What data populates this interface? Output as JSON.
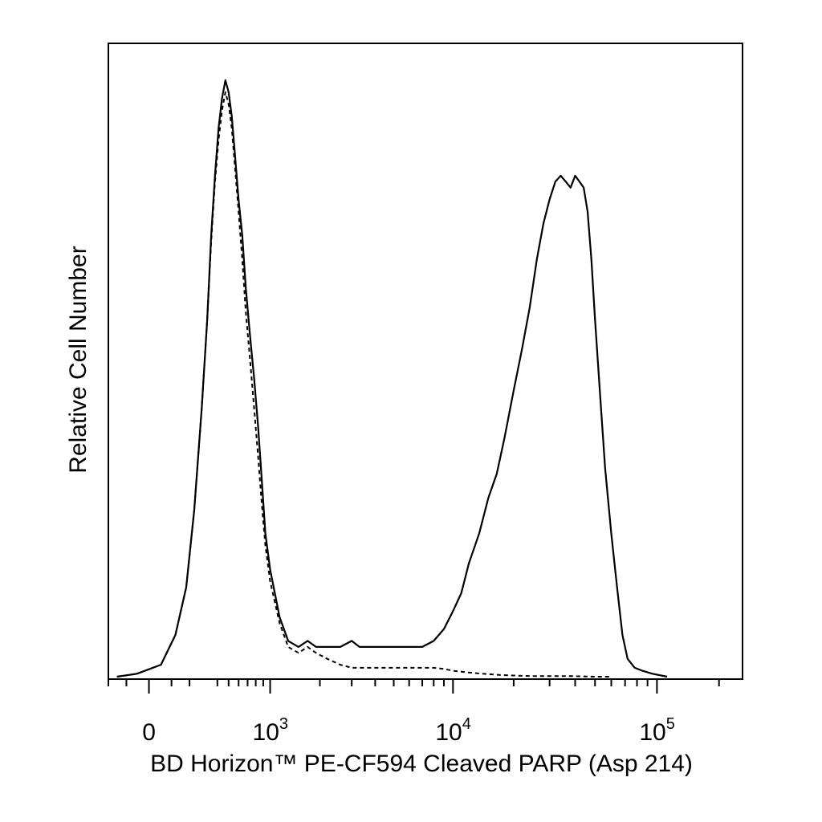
{
  "chart_data": {
    "type": "line",
    "title": "",
    "xlabel": "BD Horizon™ PE-CF594 Cleaved PARP (Asp 214)",
    "ylabel": "Relative Cell Number",
    "x_scale": "biexponential",
    "x_ticks": [
      {
        "value": 0,
        "base": "0",
        "exp": ""
      },
      {
        "value": 1000,
        "base": "10",
        "exp": "3"
      },
      {
        "value": 10000,
        "base": "10",
        "exp": "4"
      },
      {
        "value": 100000,
        "base": "10",
        "exp": "5"
      }
    ],
    "xlim": [
      -200,
      260000
    ],
    "ylim": [
      0,
      100
    ],
    "grid": false,
    "legend": "none",
    "series": [
      {
        "style": "solid",
        "x": [
          -150,
          -50,
          50,
          120,
          180,
          230,
          280,
          320,
          350,
          380,
          410,
          440,
          470,
          500,
          530,
          560,
          600,
          640,
          680,
          730,
          780,
          830,
          880,
          930,
          1000,
          1150,
          1300,
          1500,
          1700,
          1900,
          2200,
          2600,
          3000,
          3300,
          3700,
          4200,
          5000,
          6000,
          7000,
          8000,
          9000,
          10000,
          11000,
          12000,
          13500,
          15000,
          16500,
          18000,
          20000,
          22000,
          24000,
          26000,
          28000,
          30000,
          32000,
          34000,
          36000,
          38000,
          40000,
          42000,
          44000,
          46000,
          48000,
          50000,
          53000,
          56000,
          60000,
          64000,
          68000,
          72000,
          78000,
          85000,
          95000,
          105000,
          112000
        ],
        "y": [
          0,
          0.5,
          2,
          7,
          15,
          28,
          45,
          60,
          74,
          84,
          92,
          97,
          100,
          98,
          94,
          88,
          80,
          74,
          65,
          57,
          50,
          42,
          33,
          24,
          18,
          10,
          6,
          5,
          6,
          5,
          5,
          5,
          6,
          5,
          5,
          5,
          5,
          5,
          5,
          6,
          8,
          11,
          14,
          19,
          24,
          30,
          34,
          40,
          48,
          55,
          62,
          70,
          76,
          80,
          83,
          84,
          83,
          82,
          84,
          83,
          82,
          78,
          70,
          60,
          47,
          35,
          24,
          15,
          7,
          3,
          1.5,
          1,
          0.5,
          0.2,
          0
        ]
      },
      {
        "style": "dashed",
        "x": [
          -150,
          -50,
          50,
          120,
          180,
          230,
          280,
          320,
          350,
          380,
          410,
          440,
          470,
          500,
          530,
          560,
          600,
          640,
          680,
          730,
          780,
          830,
          880,
          930,
          1000,
          1150,
          1300,
          1500,
          1700,
          1900,
          2200,
          2600,
          3000,
          3500,
          4200,
          5000,
          6000,
          7000,
          8000,
          9000,
          10000,
          12000,
          14000,
          17000,
          20000,
          25000,
          30000,
          40000,
          50000,
          60000
        ],
        "y": [
          0,
          0.5,
          2,
          7,
          15,
          28,
          45,
          60,
          73,
          83,
          90,
          95,
          98,
          96,
          92,
          86,
          78,
          70,
          61,
          53,
          45,
          37,
          29,
          22,
          16,
          9,
          5,
          4,
          5,
          4,
          3,
          2,
          1.5,
          1.5,
          1.5,
          1.5,
          1.5,
          1.5,
          1.5,
          1.3,
          1,
          0.7,
          0.5,
          0.3,
          0.2,
          0.1,
          0.1,
          0.1,
          0,
          0
        ]
      }
    ]
  }
}
